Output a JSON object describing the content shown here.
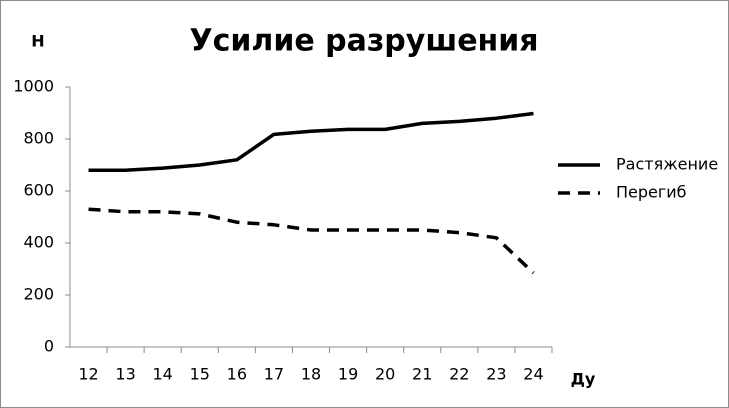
{
  "chart_data": {
    "type": "line",
    "title": "Усилие разрушения",
    "y_label": "Н",
    "x_label": "Ду",
    "categories": [
      "12",
      "13",
      "14",
      "15",
      "16",
      "17",
      "18",
      "19",
      "20",
      "21",
      "22",
      "23",
      "24"
    ],
    "series": [
      {
        "name": "Растяжение",
        "color": "#000000",
        "line_style": "solid",
        "values": [
          680,
          680,
          688,
          700,
          720,
          818,
          830,
          837,
          837,
          860,
          868,
          880,
          898
        ]
      },
      {
        "name": "Перегиб",
        "color": "#000000",
        "line_style": "dashed",
        "values": [
          530,
          520,
          520,
          512,
          480,
          470,
          450,
          450,
          450,
          450,
          440,
          420,
          285
        ]
      }
    ],
    "ylim": [
      0,
      1000
    ],
    "yticks": [
      0,
      200,
      400,
      600,
      800,
      1000
    ],
    "grid": false,
    "legend": "right"
  }
}
